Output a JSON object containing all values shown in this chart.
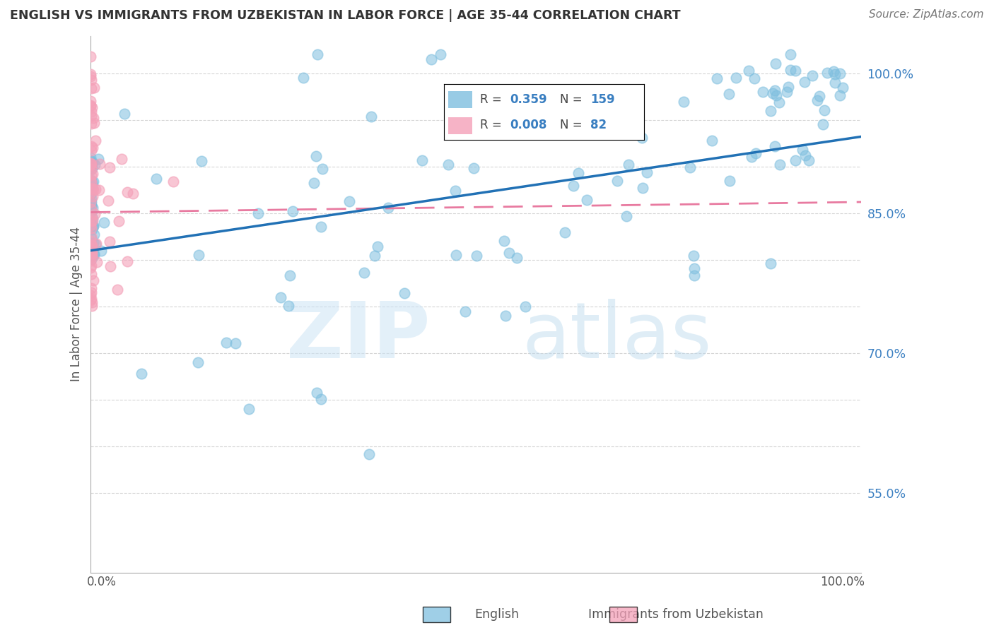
{
  "title": "ENGLISH VS IMMIGRANTS FROM UZBEKISTAN IN LABOR FORCE | AGE 35-44 CORRELATION CHART",
  "source": "Source: ZipAtlas.com",
  "ylabel": "In Labor Force | Age 35-44",
  "ytick_labels": {
    "0.55": "55.0%",
    "0.70": "70.0%",
    "0.85": "85.0%",
    "1.00": "100.0%"
  },
  "xlim": [
    0.0,
    1.0
  ],
  "ylim": [
    0.465,
    1.04
  ],
  "legend_R1": "0.359",
  "legend_N1": "159",
  "legend_R2": "0.008",
  "legend_N2": "82",
  "english_color": "#7fbfdf",
  "uzbek_color": "#f4a0b8",
  "english_line_color": "#2171b5",
  "uzbek_line_color": "#e87aa0",
  "background_color": "#ffffff",
  "grid_color": "#cccccc",
  "eng_trend_x0": 0.0,
  "eng_trend_y0": 0.81,
  "eng_trend_x1": 1.0,
  "eng_trend_y1": 0.932,
  "uzb_trend_x0": 0.0,
  "uzb_trend_y0": 0.851,
  "uzb_trend_x1": 1.0,
  "uzb_trend_y1": 0.862
}
